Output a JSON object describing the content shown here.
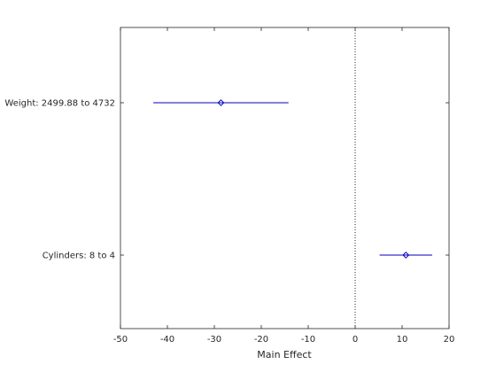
{
  "chart_data": {
    "type": "main-effects-interval",
    "xlabel": "Main Effect",
    "ylabel": "",
    "title": "",
    "xlim": [
      -50,
      20
    ],
    "xticks": [
      -50,
      -40,
      -30,
      -20,
      -10,
      0,
      10,
      20
    ],
    "xtick_labels": [
      "-50",
      "-40",
      "-30",
      "-20",
      "-10",
      "0",
      "10",
      "20"
    ],
    "reference_line": {
      "x": 0,
      "style": "dotted"
    },
    "grid": false,
    "legend": "none",
    "series_color": "#0000bd",
    "factors": [
      {
        "label": "Weight: 2499.88 to 4732",
        "effect": -28.6,
        "lower": -43.0,
        "upper": -14.2
      },
      {
        "label": "Cylinders: 8 to 4",
        "effect": 10.8,
        "lower": 5.2,
        "upper": 16.4
      }
    ]
  }
}
